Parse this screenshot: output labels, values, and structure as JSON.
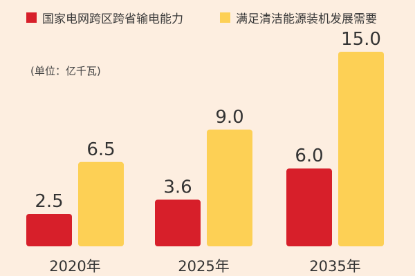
{
  "chart_data": {
    "type": "bar",
    "title": "",
    "unit_label": "(单位：亿千瓦)",
    "categories": [
      "2020年",
      "2025年",
      "2035年"
    ],
    "series": [
      {
        "name": "国家电网跨区跨省输电能力",
        "values": [
          2.5,
          3.6,
          6.0
        ],
        "value_labels": [
          "2.5",
          "3.6",
          "6.0"
        ],
        "color": "#d71f2a"
      },
      {
        "name": "满足清洁能源装机发展需要",
        "values": [
          6.5,
          9.0,
          15.0
        ],
        "value_labels": [
          "6.5",
          "9.0",
          "15.0"
        ],
        "color": "#fdd055"
      }
    ],
    "ylim": [
      0,
      15
    ],
    "xlabel": "",
    "ylabel": "",
    "legend": "top"
  }
}
